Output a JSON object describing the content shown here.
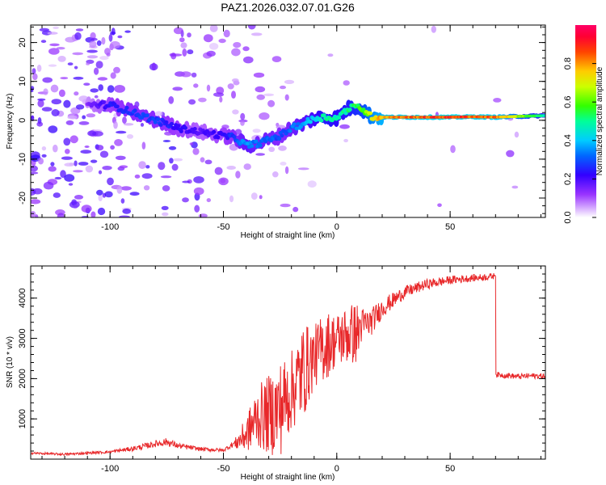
{
  "title": "PAZ1.2026.032.07.01.G26",
  "colors": {
    "snr_line": "#e8282a",
    "axes": "#000000",
    "spec_background": "#ffffff"
  },
  "chart_data": [
    {
      "id": "spectrogram",
      "type": "heatmap",
      "title": "",
      "xlabel": "Height of straight line (km)",
      "ylabel": "Frequency (Hz)",
      "xlim": [
        -135,
        92
      ],
      "ylim": [
        -25,
        24.5
      ],
      "xticks": [
        -100,
        -50,
        0,
        50
      ],
      "xtick_labels": [
        "-100",
        "-50",
        "0",
        "50"
      ],
      "yticks": [
        -20,
        -10,
        0,
        10,
        20
      ],
      "ytick_labels": [
        "-20",
        "-10",
        "0",
        "10",
        "20"
      ],
      "colorbar": {
        "label": "Normalized spectral amplitude",
        "range": [
          0,
          1
        ],
        "ticks": [
          0.0,
          0.2,
          0.4,
          0.6,
          0.8
        ],
        "tick_labels": [
          "0.0",
          "0.2",
          "0.4",
          "0.6",
          "0.8"
        ],
        "colormap": "rainbow (white-violet-blue-cyan-green-yellow-red-magenta)"
      },
      "ridge": {
        "description": "dominant frequency ridge vs height",
        "x": [
          -110,
          -100,
          -90,
          -80,
          -70,
          -60,
          -50,
          -45,
          -40,
          -35,
          -30,
          -25,
          -20,
          -15,
          -10,
          -5,
          0,
          5,
          10,
          15,
          20,
          30,
          40,
          50,
          60,
          70,
          80,
          92
        ],
        "frequency": [
          4,
          4,
          2,
          0,
          -2,
          -3,
          -4,
          -4.5,
          -6.5,
          -6,
          -5,
          -4,
          -2,
          -1,
          0.5,
          0.8,
          0.5,
          3,
          3.5,
          1,
          0.8,
          0.8,
          0.8,
          0.8,
          0.9,
          0.8,
          1,
          1.2
        ],
        "amplitude": [
          0.15,
          0.25,
          0.3,
          0.3,
          0.25,
          0.2,
          0.25,
          0.3,
          0.4,
          0.35,
          0.35,
          0.3,
          0.35,
          0.4,
          0.45,
          0.55,
          0.5,
          0.55,
          0.6,
          0.75,
          0.85,
          0.9,
          0.92,
          0.95,
          0.92,
          0.9,
          0.7,
          0.5
        ]
      }
    },
    {
      "id": "snr",
      "type": "line",
      "title": "",
      "xlabel": "Height of straight line (km)",
      "ylabel": "SNR (10 * v/v)",
      "xlim": [
        -135,
        92
      ],
      "ylim": [
        0,
        4800
      ],
      "xticks": [
        -100,
        -50,
        0,
        50
      ],
      "xtick_labels": [
        "-100",
        "-50",
        "0",
        "50"
      ],
      "yticks": [
        1000,
        2000,
        3000,
        4000
      ],
      "ytick_labels": [
        "1000",
        "2000",
        "3000",
        "4000"
      ],
      "series": [
        {
          "name": "SNR",
          "x": [
            -135,
            -120,
            -100,
            -90,
            -80,
            -75,
            -70,
            -60,
            -50,
            -45,
            -40,
            -35,
            -30,
            -25,
            -20,
            -15,
            -10,
            -5,
            0,
            5,
            10,
            15,
            20,
            25,
            30,
            40,
            50,
            60,
            65,
            69.5,
            70,
            75,
            80,
            85,
            92
          ],
          "values": [
            150,
            120,
            180,
            260,
            380,
            430,
            330,
            250,
            220,
            400,
            700,
            1200,
            1300,
            1500,
            1900,
            2400,
            2700,
            3000,
            3100,
            3250,
            3300,
            3400,
            3750,
            3950,
            4150,
            4350,
            4450,
            4500,
            4520,
            4550,
            2100,
            2080,
            2050,
            2070,
            2060
          ],
          "noise": [
            40,
            40,
            50,
            80,
            120,
            140,
            100,
            70,
            60,
            120,
            400,
            700,
            900,
            1100,
            900,
            1100,
            700,
            800,
            600,
            700,
            700,
            500,
            350,
            280,
            220,
            180,
            150,
            130,
            120,
            110,
            100,
            100,
            100,
            100,
            100
          ]
        }
      ]
    }
  ]
}
